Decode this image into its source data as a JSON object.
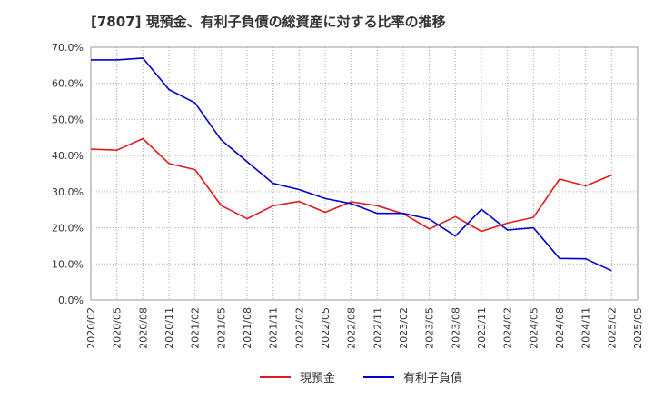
{
  "chart_data": {
    "type": "line",
    "title": "[7807]  現預金、有利子負債の総資産に対する比率の推移",
    "xlabel": "",
    "ylabel": "",
    "ylim": [
      0,
      70
    ],
    "y_ticks": [
      0,
      10,
      20,
      30,
      40,
      50,
      60,
      70
    ],
    "y_tick_labels": [
      "0.0%",
      "10.0%",
      "20.0%",
      "30.0%",
      "40.0%",
      "50.0%",
      "60.0%",
      "70.0%"
    ],
    "categories": [
      "2020/02",
      "2020/05",
      "2020/08",
      "2020/11",
      "2021/02",
      "2021/05",
      "2021/08",
      "2021/11",
      "2022/02",
      "2022/05",
      "2022/08",
      "2022/11",
      "2023/02",
      "2023/05",
      "2023/08",
      "2023/11",
      "2024/02",
      "2024/05",
      "2024/08",
      "2024/11",
      "2025/02",
      "2025/05"
    ],
    "grid": true,
    "legend_position": "bottom",
    "series": [
      {
        "name": "現預金",
        "color": "#e31a1c",
        "values": [
          41.8,
          41.5,
          44.7,
          37.8,
          36.1,
          26.2,
          22.5,
          26.1,
          27.3,
          24.3,
          27.2,
          26.1,
          23.9,
          19.7,
          23.1,
          19.0,
          21.3,
          22.9,
          33.5,
          31.6,
          34.6,
          null
        ]
      },
      {
        "name": "有利子負債",
        "color": "#0000cc",
        "values": [
          66.5,
          66.5,
          67.0,
          58.3,
          54.6,
          44.4,
          38.3,
          32.3,
          30.6,
          28.1,
          26.7,
          24.0,
          24.0,
          22.4,
          17.7,
          25.1,
          19.4,
          20.0,
          11.5,
          11.4,
          8.1,
          null
        ]
      }
    ]
  }
}
